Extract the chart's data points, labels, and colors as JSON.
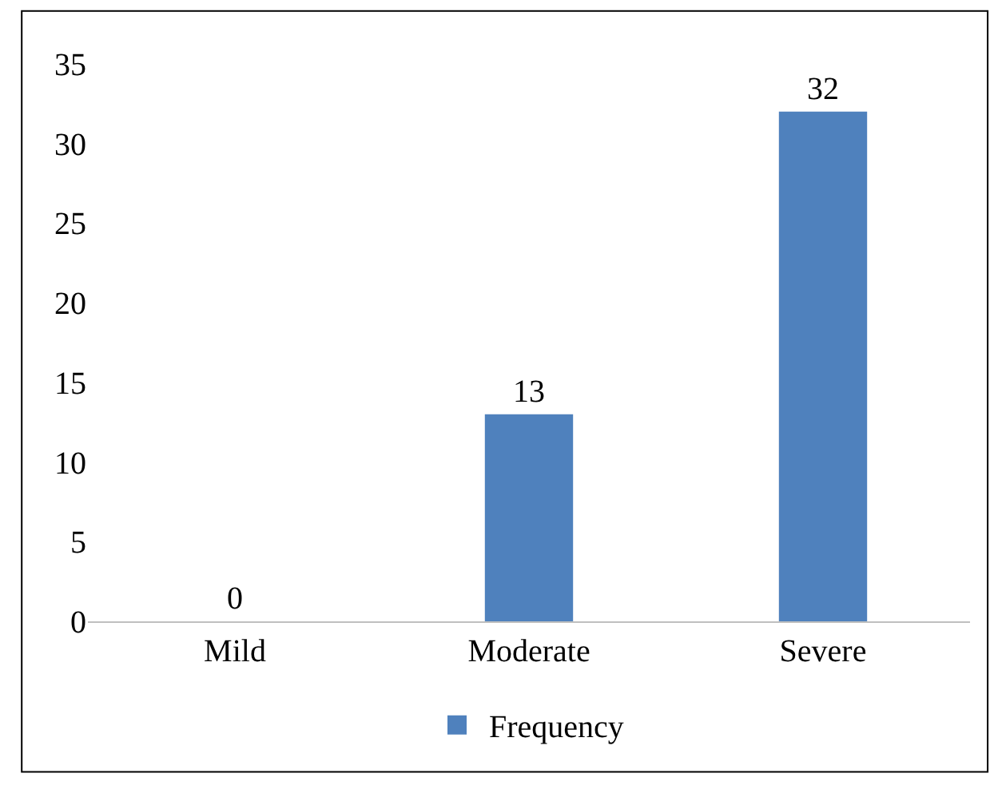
{
  "chart_data": {
    "type": "bar",
    "categories": [
      "Mild",
      "Moderate",
      "Severe"
    ],
    "series": [
      {
        "name": "Frequency",
        "color": "#4f81bd",
        "values": [
          0,
          13,
          32
        ]
      }
    ],
    "ylim": [
      0,
      35
    ],
    "yticks": [
      0,
      5,
      10,
      15,
      20,
      25,
      30,
      35
    ],
    "legend": "bottom",
    "data_labels": true
  }
}
